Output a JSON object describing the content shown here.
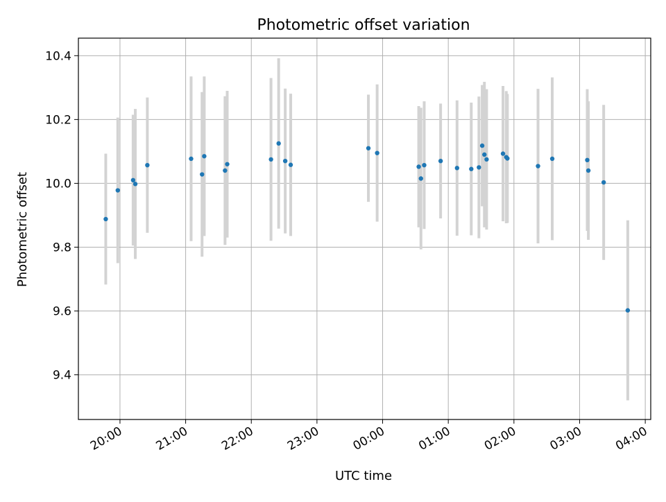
{
  "chart_data": {
    "type": "scatter",
    "title": "Photometric offset variation",
    "xlabel": "UTC time",
    "ylabel": "Photometric offset",
    "x_tick_labels": [
      "20:00",
      "21:00",
      "22:00",
      "23:00",
      "00:00",
      "01:00",
      "02:00",
      "03:00",
      "04:00"
    ],
    "y_tick_labels": [
      "9.4",
      "9.6",
      "9.8",
      "10.0",
      "10.2",
      "10.4"
    ],
    "y_ticks": [
      9.4,
      9.6,
      9.8,
      10.0,
      10.2,
      10.4
    ],
    "xlim": [
      "19:22",
      "04:05"
    ],
    "ylim": [
      9.26,
      10.455
    ],
    "grid": true,
    "point_color": "#1f77b4",
    "errorbar_color": "#d3d3d3",
    "points": [
      {
        "x": "19:47",
        "y": 9.888,
        "err": 0.205
      },
      {
        "x": "19:58",
        "y": 9.978,
        "err": 0.228
      },
      {
        "x": "20:12",
        "y": 10.01,
        "err": 0.205
      },
      {
        "x": "20:14",
        "y": 9.998,
        "err": 0.235
      },
      {
        "x": "20:25",
        "y": 10.057,
        "err": 0.212
      },
      {
        "x": "21:05",
        "y": 10.077,
        "err": 0.258
      },
      {
        "x": "21:15",
        "y": 10.028,
        "err": 0.258
      },
      {
        "x": "21:17",
        "y": 10.085,
        "err": 0.25
      },
      {
        "x": "21:36",
        "y": 10.04,
        "err": 0.233
      },
      {
        "x": "21:38",
        "y": 10.06,
        "err": 0.23
      },
      {
        "x": "22:18",
        "y": 10.075,
        "err": 0.255
      },
      {
        "x": "22:25",
        "y": 10.125,
        "err": 0.267
      },
      {
        "x": "22:31",
        "y": 10.07,
        "err": 0.227
      },
      {
        "x": "22:36",
        "y": 10.058,
        "err": 0.223
      },
      {
        "x": "23:47",
        "y": 10.11,
        "err": 0.168
      },
      {
        "x": "23:55",
        "y": 10.095,
        "err": 0.215
      },
      {
        "x": "00:33",
        "y": 10.052,
        "err": 0.19
      },
      {
        "x": "00:35",
        "y": 10.015,
        "err": 0.222
      },
      {
        "x": "00:38",
        "y": 10.057,
        "err": 0.2
      },
      {
        "x": "00:53",
        "y": 10.07,
        "err": 0.18
      },
      {
        "x": "01:08",
        "y": 10.048,
        "err": 0.212
      },
      {
        "x": "01:21",
        "y": 10.045,
        "err": 0.208
      },
      {
        "x": "01:28",
        "y": 10.05,
        "err": 0.222
      },
      {
        "x": "01:31",
        "y": 10.118,
        "err": 0.19
      },
      {
        "x": "01:33",
        "y": 10.09,
        "err": 0.228
      },
      {
        "x": "01:35",
        "y": 10.075,
        "err": 0.22
      },
      {
        "x": "01:50",
        "y": 10.093,
        "err": 0.212
      },
      {
        "x": "01:53",
        "y": 10.082,
        "err": 0.207
      },
      {
        "x": "01:54",
        "y": 10.078,
        "err": 0.202
      },
      {
        "x": "02:22",
        "y": 10.054,
        "err": 0.242
      },
      {
        "x": "02:35",
        "y": 10.077,
        "err": 0.255
      },
      {
        "x": "03:07",
        "y": 10.073,
        "err": 0.222
      },
      {
        "x": "03:08",
        "y": 10.04,
        "err": 0.217
      },
      {
        "x": "03:22",
        "y": 10.003,
        "err": 0.243
      },
      {
        "x": "03:44",
        "y": 9.602,
        "err": 0.282
      }
    ]
  }
}
